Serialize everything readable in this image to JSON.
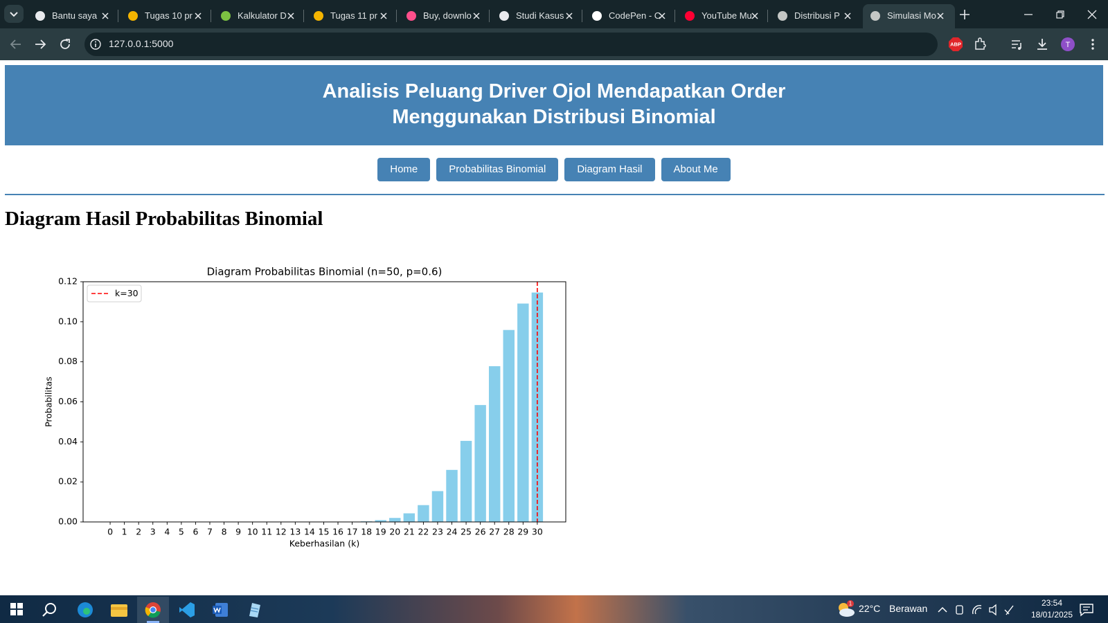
{
  "browser": {
    "tabs": [
      "Bantu saya",
      "Tugas 10 pr",
      "Kalkulator D",
      "Tugas 11 pr",
      "Buy, downlo",
      "Studi Kasus",
      "CodePen - C",
      "YouTube Mu",
      "Distribusi P",
      "Simulasi Mo"
    ],
    "active_tab": 9,
    "address": "127.0.0.1:5000",
    "extension_badge": "ABP",
    "profile_initial": "T"
  },
  "header": {
    "title_lines": [
      "Analisis Peluang Driver Ojol Mendapatkan Order",
      "Menggunakan Distribusi Binomial"
    ]
  },
  "nav": [
    "Home",
    "Probabilitas Binomial",
    "Diagram Hasil",
    "About Me"
  ],
  "page_heading": "Diagram Hasil Probabilitas Binomial",
  "chart_data": {
    "type": "bar",
    "title": "Diagram Probabilitas Binomial (n=50, p=0.6)",
    "x_label": "Keberhasilan (k)",
    "y_label": "Probabilitas",
    "categories": [
      "0",
      "1",
      "2",
      "3",
      "4",
      "5",
      "6",
      "7",
      "8",
      "9",
      "10",
      "11",
      "12",
      "13",
      "14",
      "15",
      "16",
      "17",
      "18",
      "19",
      "20",
      "21",
      "22",
      "23",
      "24",
      "25",
      "26",
      "27",
      "28",
      "29",
      "30"
    ],
    "values": [
      0,
      0,
      0,
      0,
      0,
      0,
      0,
      0,
      0,
      0,
      0,
      0,
      0,
      0,
      0,
      0,
      0,
      0.0001,
      0.0003,
      0.0009,
      0.002,
      0.0043,
      0.0084,
      0.0154,
      0.026,
      0.0405,
      0.0584,
      0.0778,
      0.0959,
      0.1091,
      0.1146
    ],
    "color": "#87ceeb",
    "ylim": [
      0,
      0.12
    ],
    "yticks": [
      {
        "value": 0,
        "label": "0.00"
      },
      {
        "value": 0.02,
        "label": "0.02"
      },
      {
        "value": 0.04,
        "label": "0.04"
      },
      {
        "value": 0.06,
        "label": "0.06"
      },
      {
        "value": 0.08,
        "label": "0.08"
      },
      {
        "value": 0.1,
        "label": "0.10"
      },
      {
        "value": 0.12,
        "label": "0.12"
      }
    ],
    "reference_line": {
      "label": "k=30",
      "category_index": 30,
      "color": "#ff0000",
      "style": "dashed"
    },
    "legend_position": "upper left",
    "grid": false
  },
  "taskbar": {
    "weather_badge": "1",
    "temperature": "22°C",
    "weather": "Berawan",
    "time": "23:54",
    "date": "18/01/2025"
  }
}
